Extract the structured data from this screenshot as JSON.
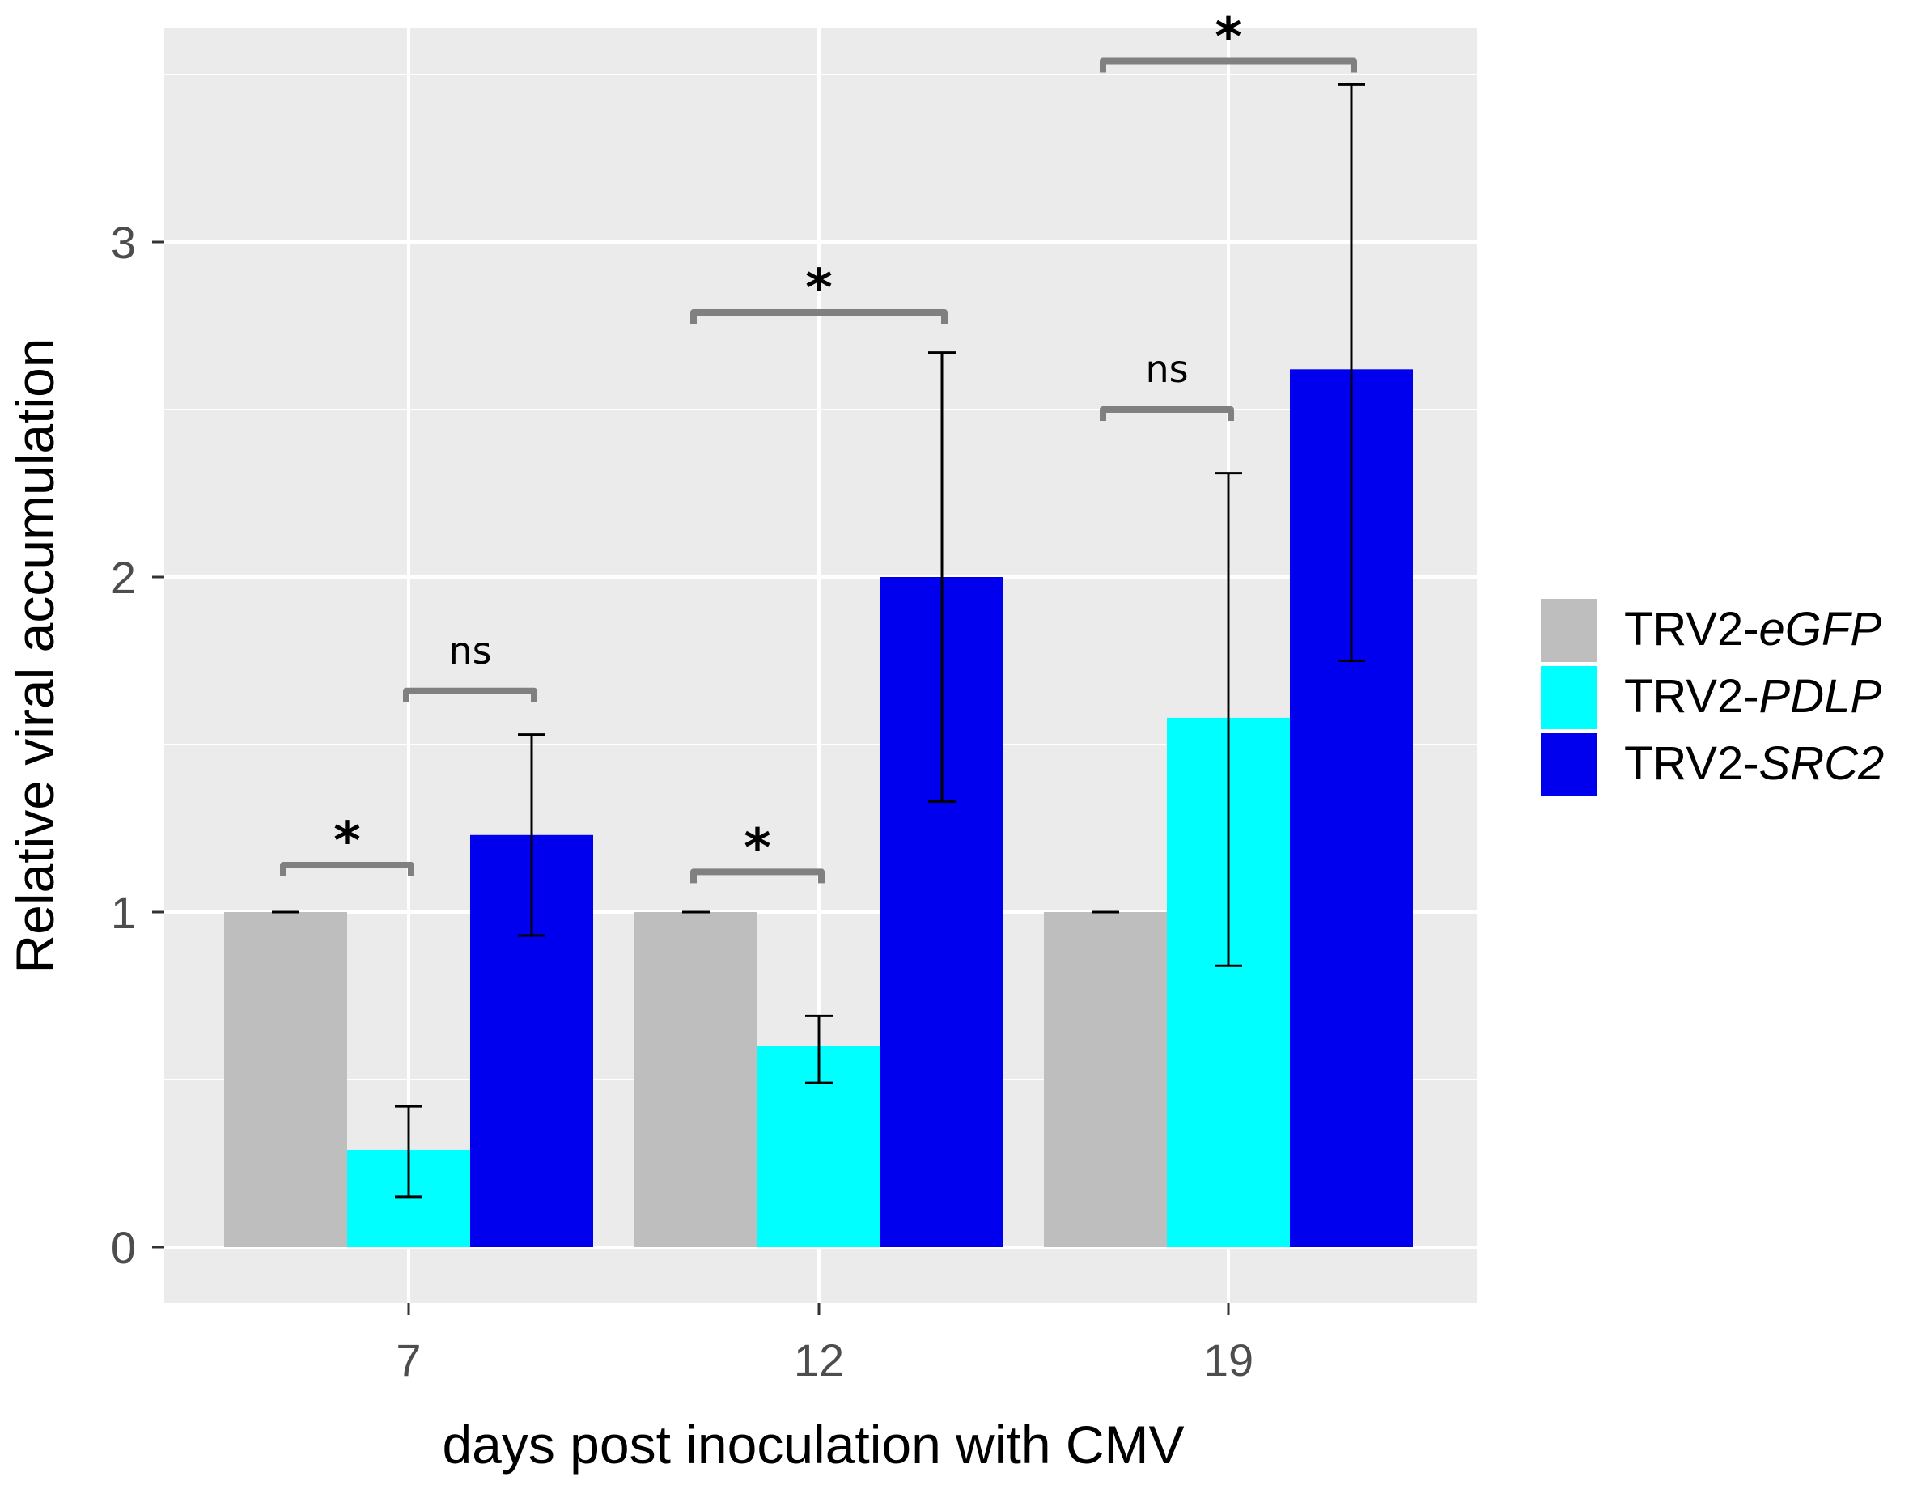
{
  "chart_data": {
    "type": "bar",
    "title": "",
    "xlabel": "days post inoculation with CMV",
    "ylabel": "Relative viral accumulation",
    "categories": [
      "7",
      "12",
      "19"
    ],
    "ylim": [
      -0.16,
      3.5
    ],
    "yticks": [
      0,
      1,
      2,
      3
    ],
    "grid": true,
    "legend_position": "right",
    "series": [
      {
        "name": "TRV2-",
        "italic": "eGFP",
        "color": "#bebebe",
        "values": [
          1.0,
          1.0,
          1.0
        ],
        "err_low": [
          1.0,
          1.0,
          1.0
        ],
        "err_high": [
          1.0,
          1.0,
          1.0
        ]
      },
      {
        "name": "TRV2-",
        "italic": "PDLP",
        "color": "#00ffff",
        "values": [
          0.29,
          0.6,
          1.58
        ],
        "err_low": [
          0.15,
          0.49,
          0.84
        ],
        "err_high": [
          0.42,
          0.69,
          2.31
        ]
      },
      {
        "name": "TRV2-",
        "italic": "SRC2",
        "color": "#0000ee",
        "values": [
          1.23,
          2.0,
          2.62
        ],
        "err_low": [
          0.93,
          1.33,
          1.75
        ],
        "err_high": [
          1.53,
          2.67,
          3.47
        ]
      }
    ],
    "significance": [
      {
        "category": 0,
        "from": 0,
        "to": 1,
        "label": "*",
        "level": 1.14
      },
      {
        "category": 0,
        "from": 1,
        "to": 2,
        "label": "ns",
        "level": 1.66
      },
      {
        "category": 1,
        "from": 0,
        "to": 1,
        "label": "*",
        "level": 1.12
      },
      {
        "category": 1,
        "from": 0,
        "to": 2,
        "label": "*",
        "level": 2.79
      },
      {
        "category": 2,
        "from": 0,
        "to": 1,
        "label": "ns",
        "level": 2.5
      },
      {
        "category": 2,
        "from": 0,
        "to": 2,
        "label": "*",
        "level": 3.54
      }
    ]
  }
}
